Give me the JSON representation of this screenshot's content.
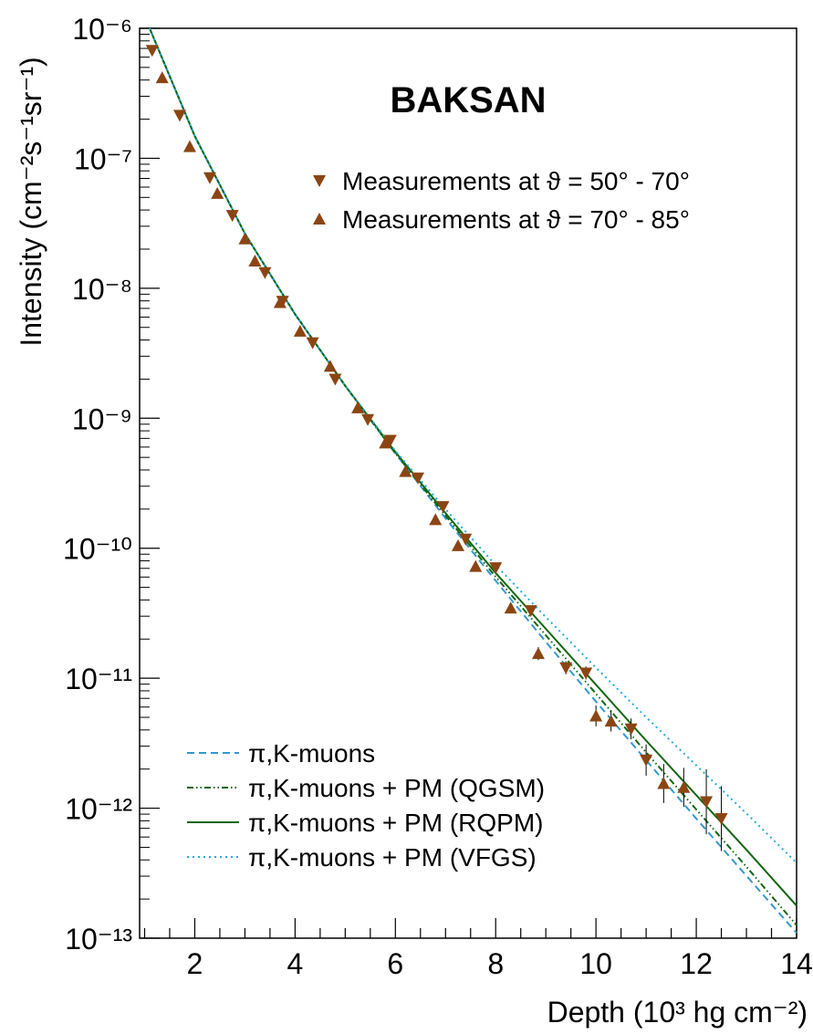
{
  "chart_data": {
    "type": "scatter",
    "title": "BAKSAN",
    "xlabel": "Depth (10³ hg cm⁻²)",
    "ylabel": "Intensity (cm⁻²s⁻¹sr⁻¹)",
    "xlim": [
      0.9,
      14.0
    ],
    "ylim_log10": [
      -13,
      -6
    ],
    "yscale": "log",
    "x_ticks": [
      "2",
      "4",
      "6",
      "8",
      "10",
      "12",
      "14"
    ],
    "y_ticks": [
      "10⁻¹³",
      "10⁻¹²",
      "10⁻¹¹",
      "10⁻¹⁰",
      "10⁻⁹",
      "10⁻⁸",
      "10⁻⁷",
      "10⁻⁶"
    ],
    "legend_top": [
      {
        "name": "Measurements at ϑ = 50° - 70°",
        "marker": "triangle-down",
        "color": "#8b4513"
      },
      {
        "name": "Measurements at ϑ = 70° - 85°",
        "marker": "triangle-up",
        "color": "#8b4513"
      }
    ],
    "legend_bottom": [
      {
        "name": "π,K-muons",
        "style": "dashed",
        "color": "#3399cc"
      },
      {
        "name": "π,K-muons + PM (QGSM)",
        "style": "dashdotdot",
        "color": "#116611"
      },
      {
        "name": "π,K-muons + PM (RQPM)",
        "style": "solid",
        "color": "#116611"
      },
      {
        "name": "π,K-muons + PM (VFGS)",
        "style": "dotted",
        "color": "#22aadd"
      }
    ],
    "series_points": [
      {
        "name": "Measurements at ϑ = 50° - 70°",
        "marker": "triangle-down",
        "x": [
          1.15,
          1.7,
          2.3,
          2.75,
          3.4,
          3.75,
          4.35,
          4.8,
          5.45,
          5.9,
          6.45,
          6.95,
          7.4,
          8.0,
          8.7,
          9.4,
          9.8,
          10.7,
          11.0,
          12.2,
          12.5
        ],
        "y_log10": [
          -6.17,
          -6.67,
          -7.15,
          -7.44,
          -7.88,
          -8.1,
          -8.42,
          -8.7,
          -9.01,
          -9.17,
          -9.46,
          -9.68,
          -9.93,
          -10.15,
          -10.48,
          -10.92,
          -10.96,
          -11.39,
          -11.63,
          -11.95,
          -12.08
        ],
        "err_log10": [
          0,
          0,
          0,
          0,
          0,
          0,
          0,
          0,
          0,
          0,
          0,
          0,
          0,
          0,
          0,
          0.05,
          0.05,
          0.08,
          0.12,
          0.25,
          0.25
        ]
      },
      {
        "name": "Measurements at ϑ = 70° - 85°",
        "marker": "triangle-up",
        "x": [
          1.35,
          1.9,
          2.45,
          3.0,
          3.2,
          3.7,
          4.1,
          4.7,
          5.25,
          5.8,
          6.2,
          6.8,
          7.25,
          7.6,
          8.3,
          8.85,
          10.0,
          10.3,
          11.35,
          11.75
        ],
        "y_log10": [
          -6.38,
          -6.91,
          -7.27,
          -7.62,
          -7.79,
          -8.11,
          -8.33,
          -8.6,
          -8.92,
          -9.19,
          -9.41,
          -9.78,
          -9.98,
          -10.14,
          -10.46,
          -10.81,
          -11.29,
          -11.33,
          -11.81,
          -11.84
        ],
        "err_log10": [
          0,
          0,
          0,
          0,
          0,
          0,
          0,
          0,
          0,
          0,
          0,
          0,
          0,
          0,
          0,
          0.05,
          0.08,
          0.08,
          0.15,
          0.15
        ]
      }
    ],
    "series_lines": [
      {
        "name": "π,K-muons",
        "x": [
          1.1,
          2,
          3,
          4,
          5,
          6,
          7,
          8,
          9,
          10,
          11,
          12,
          13,
          14
        ],
        "y_log10": [
          -6.0,
          -6.83,
          -7.58,
          -8.2,
          -8.75,
          -9.27,
          -9.77,
          -10.25,
          -10.72,
          -11.18,
          -11.63,
          -12.08,
          -12.52,
          -12.96
        ]
      },
      {
        "name": "π,K-muons + PM (QGSM)",
        "x": [
          1.1,
          2,
          3,
          4,
          5,
          6,
          7,
          8,
          9,
          10,
          11,
          12,
          13,
          14
        ],
        "y_log10": [
          -6.0,
          -6.83,
          -7.58,
          -8.2,
          -8.75,
          -9.27,
          -9.75,
          -10.22,
          -10.67,
          -11.12,
          -11.57,
          -12.01,
          -12.45,
          -12.9
        ]
      },
      {
        "name": "π,K-muons + PM (RQPM)",
        "x": [
          1.1,
          2,
          3,
          4,
          5,
          6,
          7,
          8,
          9,
          10,
          11,
          12,
          13,
          14
        ],
        "y_log10": [
          -6.0,
          -6.83,
          -7.58,
          -8.2,
          -8.75,
          -9.26,
          -9.73,
          -10.19,
          -10.62,
          -11.05,
          -11.48,
          -11.9,
          -12.32,
          -12.75
        ]
      },
      {
        "name": "π,K-muons + PM (VFGS)",
        "x": [
          1.1,
          2,
          3,
          4,
          5,
          6,
          7,
          8,
          9,
          10,
          11,
          12,
          13,
          14
        ],
        "y_log10": [
          -6.0,
          -6.83,
          -7.58,
          -8.2,
          -8.75,
          -9.25,
          -9.7,
          -10.13,
          -10.53,
          -10.92,
          -11.3,
          -11.67,
          -12.04,
          -12.42
        ]
      }
    ]
  }
}
